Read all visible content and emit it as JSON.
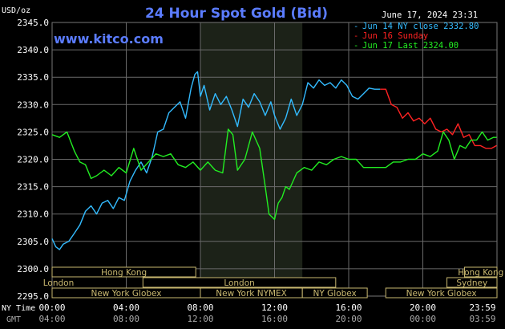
{
  "chart_data": {
    "type": "line",
    "title": "24 Hour Spot Gold (Bid)",
    "source": "www.kitco.com",
    "unit": "USD/oz",
    "timestamp": "June 17, 2024 23:31",
    "ylim": [
      2295.0,
      2345.0
    ],
    "y_ticks": [
      "2345.0",
      "2340.0",
      "2335.0",
      "2330.0",
      "2325.0",
      "2320.0",
      "2315.0",
      "2310.0",
      "2305.0",
      "2300.0",
      "2295.0"
    ],
    "x_range_hours": [
      0,
      24
    ],
    "x_ticks_ny": [
      "00:00",
      "04:00",
      "08:00",
      "12:00",
      "16:00",
      "20:00",
      "23:59"
    ],
    "x_ticks_gmt": [
      "04:00",
      "08:00",
      "12:00",
      "16:00",
      "20:00",
      "00:00",
      "03:59"
    ],
    "x_axis_label_ny": "NY Time",
    "x_axis_label_gmt": "GMT",
    "grid": true,
    "legend_position": "top-right",
    "shaded_session_hours": [
      8.0,
      13.5
    ],
    "series": [
      {
        "name": "Jun 14 NY close 2332.80",
        "color": "#33bbff",
        "x": [
          0,
          0.2,
          0.4,
          0.6,
          0.9,
          1.2,
          1.5,
          1.8,
          2.1,
          2.4,
          2.7,
          3.0,
          3.3,
          3.6,
          3.9,
          4.2,
          4.5,
          4.8,
          5.1,
          5.4,
          5.7,
          6.0,
          6.3,
          6.6,
          6.9,
          7.2,
          7.5,
          7.7,
          7.85,
          8.0,
          8.2,
          8.5,
          8.8,
          9.1,
          9.4,
          9.7,
          10.0,
          10.3,
          10.6,
          10.9,
          11.2,
          11.5,
          11.8,
          12.0,
          12.3,
          12.6,
          12.9,
          13.2,
          13.5,
          13.8,
          14.1,
          14.4,
          14.7,
          15.0,
          15.3,
          15.6,
          15.9,
          16.2,
          16.5,
          16.8,
          17.1,
          17.4,
          17.7
        ],
        "y": [
          2305.5,
          2304.0,
          2303.5,
          2304.5,
          2305.0,
          2306.5,
          2308.0,
          2310.5,
          2311.5,
          2310.0,
          2312.0,
          2312.5,
          2311.0,
          2313.0,
          2312.5,
          2316.0,
          2318.0,
          2319.5,
          2317.5,
          2320.5,
          2325.0,
          2325.5,
          2328.5,
          2329.5,
          2330.5,
          2327.5,
          2333.0,
          2335.5,
          2336.0,
          2331.5,
          2333.5,
          2329.0,
          2332.0,
          2330.0,
          2331.5,
          2329.0,
          2326.0,
          2331.0,
          2329.5,
          2332.0,
          2330.5,
          2328.0,
          2330.5,
          2328.0,
          2325.5,
          2327.5,
          2331.0,
          2328.0,
          2330.0,
          2334.0,
          2333.0,
          2334.5,
          2333.5,
          2334.0,
          2333.0,
          2334.5,
          2333.5,
          2331.5,
          2331.0,
          2332.0,
          2333.0,
          2332.8,
          2332.8
        ]
      },
      {
        "name": "Jun 16 Sunday",
        "color": "#ff2222",
        "x": [
          17.7,
          18.0,
          18.3,
          18.6,
          18.9,
          19.2,
          19.5,
          19.8,
          20.1,
          20.4,
          20.7,
          21.0,
          21.3,
          21.6,
          21.9,
          22.2,
          22.5,
          22.8,
          23.1,
          23.4,
          23.7,
          23.98
        ],
        "y": [
          2332.8,
          2332.8,
          2330.0,
          2329.5,
          2327.5,
          2328.5,
          2327.0,
          2327.5,
          2326.5,
          2327.5,
          2325.5,
          2325.0,
          2325.5,
          2324.5,
          2326.5,
          2324.0,
          2324.5,
          2322.5,
          2322.5,
          2322.0,
          2322.0,
          2322.5
        ]
      },
      {
        "name": "Jun 17 Last 2324.00",
        "color": "#22ee22",
        "x": [
          0,
          0.4,
          0.8,
          1.2,
          1.5,
          1.8,
          2.1,
          2.4,
          2.8,
          3.2,
          3.6,
          4.0,
          4.4,
          4.8,
          5.2,
          5.6,
          6.0,
          6.4,
          6.8,
          7.2,
          7.6,
          8.0,
          8.4,
          8.8,
          9.2,
          9.5,
          9.75,
          10.0,
          10.4,
          10.8,
          11.2,
          11.5,
          11.7,
          12.0,
          12.2,
          12.4,
          12.6,
          12.8,
          13.2,
          13.6,
          14.0,
          14.4,
          14.8,
          15.2,
          15.6,
          16.0,
          16.4,
          16.8,
          17.2,
          17.6,
          18.0,
          18.4,
          18.8,
          19.2,
          19.6,
          20.0,
          20.4,
          20.8,
          21.1,
          21.4,
          21.7,
          22.0,
          22.3,
          22.6,
          22.9,
          23.2,
          23.5,
          23.8,
          23.98
        ],
        "y": [
          2324.5,
          2324.0,
          2325.0,
          2321.5,
          2319.5,
          2319.0,
          2316.5,
          2317.0,
          2318.0,
          2317.0,
          2318.5,
          2317.5,
          2322.0,
          2318.0,
          2319.5,
          2321.0,
          2320.5,
          2321.0,
          2319.0,
          2318.5,
          2319.5,
          2318.0,
          2319.5,
          2318.0,
          2317.5,
          2325.5,
          2324.5,
          2318.0,
          2320.0,
          2325.0,
          2322.0,
          2315.0,
          2310.0,
          2309.0,
          2312.0,
          2313.0,
          2315.0,
          2314.5,
          2317.5,
          2318.5,
          2318.0,
          2319.5,
          2319.0,
          2320.0,
          2320.5,
          2320.0,
          2320.0,
          2318.5,
          2318.5,
          2318.5,
          2318.5,
          2319.5,
          2319.5,
          2320.0,
          2320.0,
          2321.0,
          2320.5,
          2321.5,
          2325.0,
          2323.5,
          2320.0,
          2322.5,
          2322.0,
          2323.5,
          2323.5,
          2325.0,
          2323.5,
          2324.0,
          2324.0
        ]
      }
    ],
    "sessions": [
      {
        "label": "Hong Kong",
        "start_hour": 0,
        "end_hour": 7.75,
        "row": 0
      },
      {
        "label": "Hong Kong",
        "start_hour": 22.25,
        "end_hour": 24,
        "row": 0
      },
      {
        "label": "London",
        "start_hour": 0,
        "end_hour": 0,
        "row": 1
      },
      {
        "label": "London",
        "start_hour": 4.9,
        "end_hour": 15.3,
        "row": 1
      },
      {
        "label": "Sydney",
        "start_hour": 21.3,
        "end_hour": 24,
        "row": 1
      },
      {
        "label": "New York Globex",
        "start_hour": 0,
        "end_hour": 8.0,
        "row": 2
      },
      {
        "label": "New York NYMEX",
        "start_hour": 8.0,
        "end_hour": 13.5,
        "row": 2
      },
      {
        "label": "NY Globex",
        "start_hour": 13.5,
        "end_hour": 17.0,
        "row": 2
      },
      {
        "label": "New York Globex",
        "start_hour": 18.0,
        "end_hour": 24,
        "row": 2
      }
    ]
  }
}
